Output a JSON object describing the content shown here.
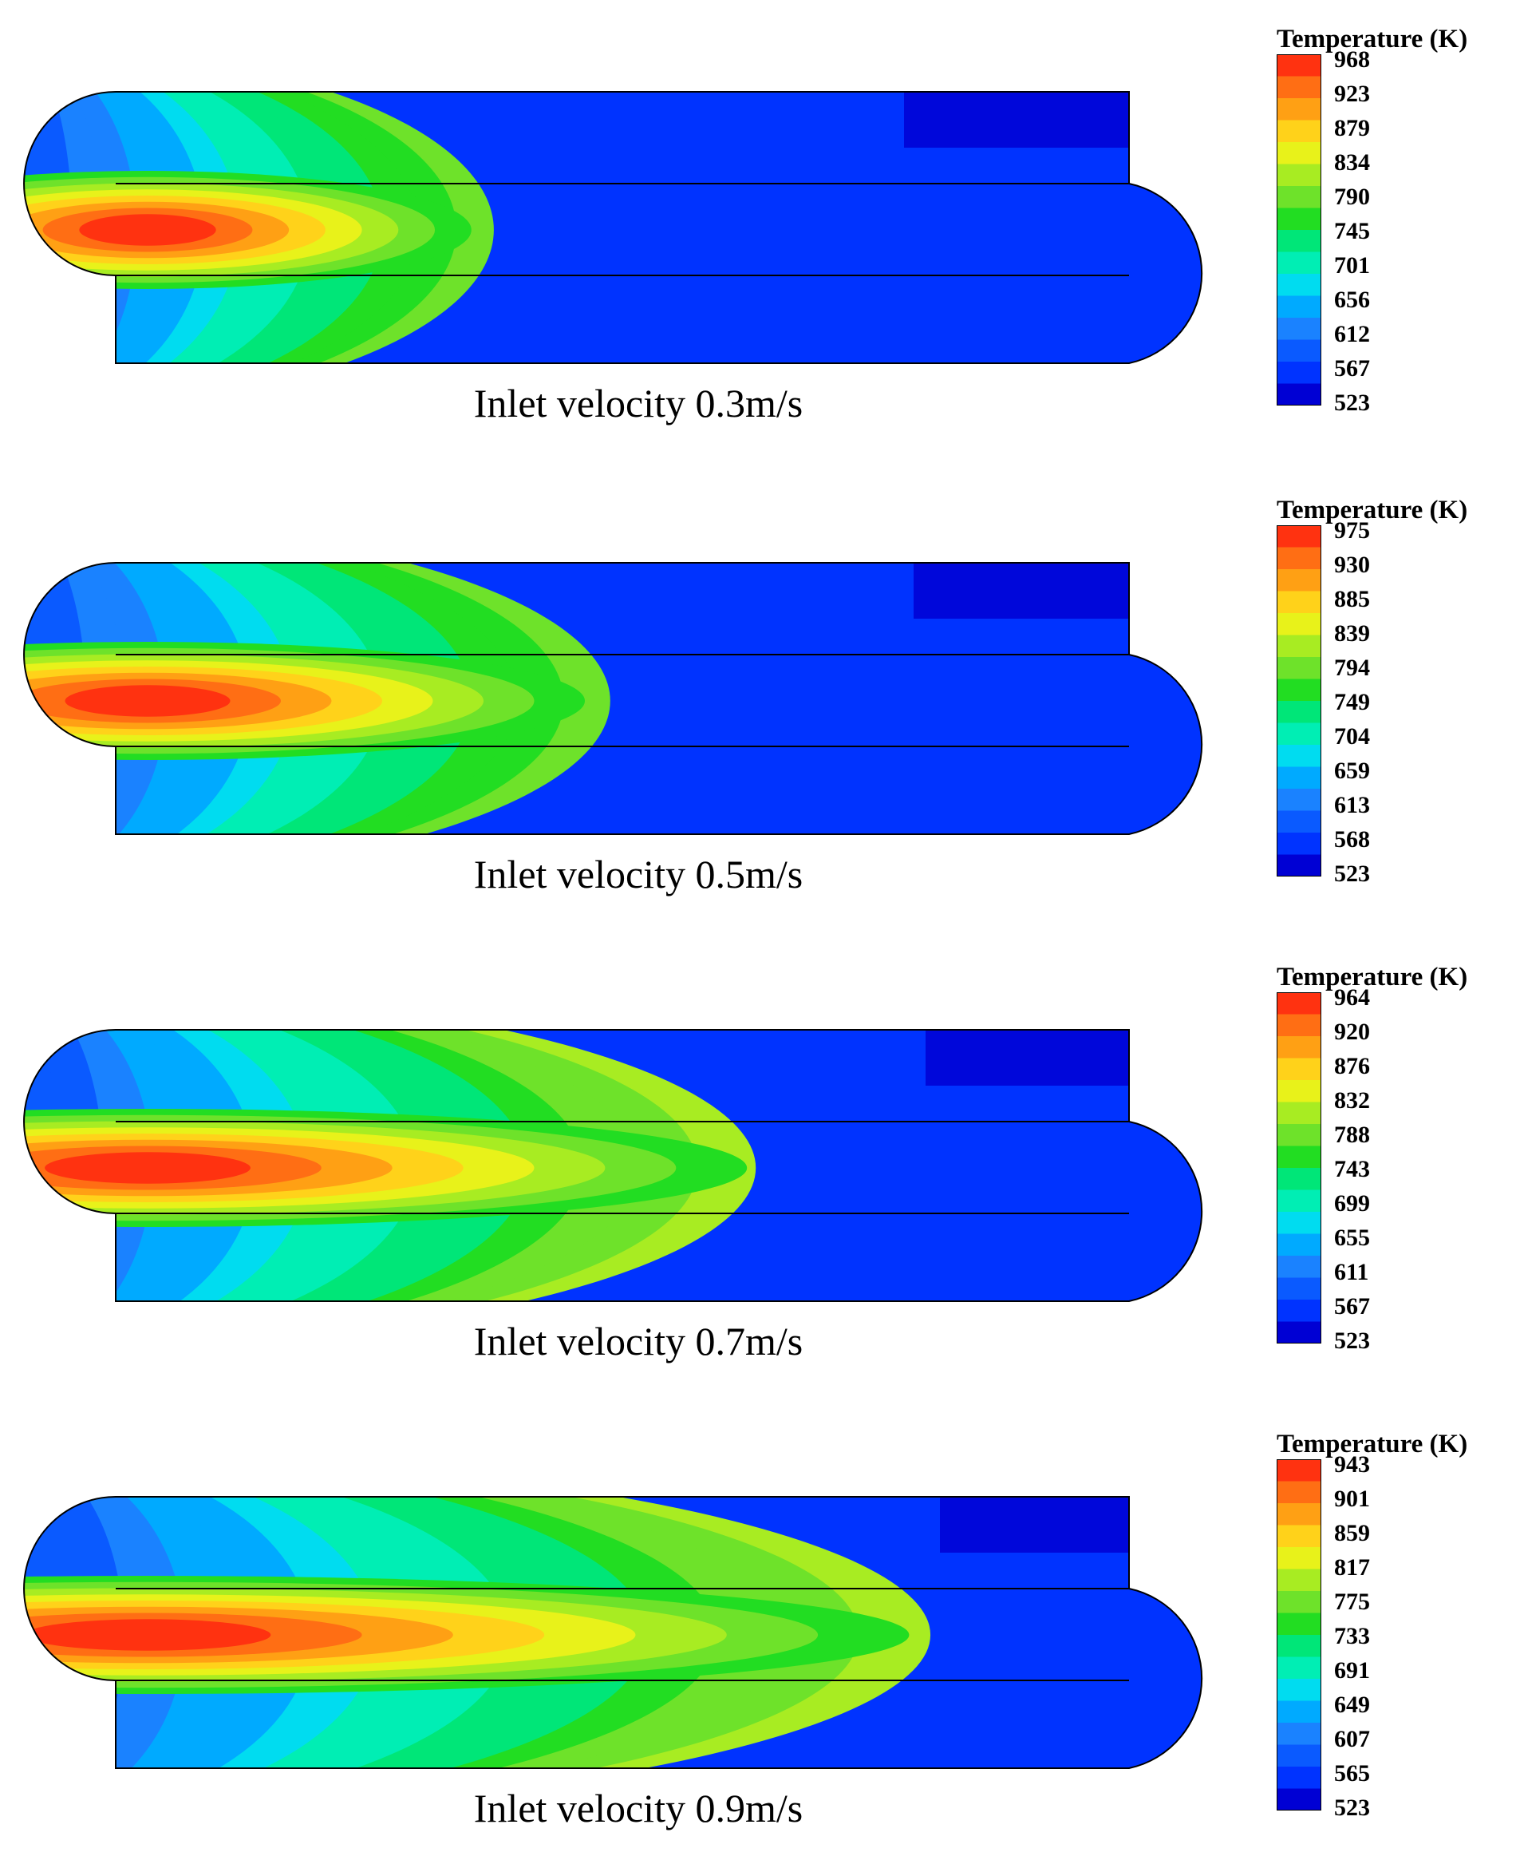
{
  "figure": {
    "type": "temperature-contour-comparison"
  },
  "colormap": [
    "#0000d4",
    "#0033ff",
    "#0a5aff",
    "#1a82ff",
    "#00aaff",
    "#00dcf0",
    "#00eeb4",
    "#00e678",
    "#22dd22",
    "#6ee22a",
    "#a8ec22",
    "#e8f21a",
    "#ffd21a",
    "#ffa014",
    "#ff6e14",
    "#ff3210"
  ],
  "panels": [
    {
      "caption": "Inlet velocity 0.3m/s",
      "legend": {
        "title": "Temperature (K)",
        "ticks": [
          "968",
          "923",
          "879",
          "834",
          "790",
          "745",
          "701",
          "656",
          "612",
          "567",
          "523"
        ]
      },
      "field": {
        "decay": 0.12,
        "core_level": 15,
        "core_length": 0.18,
        "outer_level": 9
      }
    },
    {
      "caption": "Inlet velocity 0.5m/s",
      "legend": {
        "title": "Temperature (K)",
        "ticks": [
          "975",
          "930",
          "885",
          "839",
          "794",
          "749",
          "704",
          "659",
          "613",
          "568",
          "523"
        ]
      },
      "field": {
        "decay": 0.2,
        "core_level": 15,
        "core_length": 0.25,
        "outer_level": 9
      }
    },
    {
      "caption": "Inlet velocity 0.7m/s",
      "legend": {
        "title": "Temperature (K)",
        "ticks": [
          "964",
          "920",
          "876",
          "832",
          "788",
          "743",
          "699",
          "655",
          "611",
          "567",
          "523"
        ]
      },
      "field": {
        "decay": 0.3,
        "core_level": 15,
        "core_length": 0.35,
        "outer_level": 10
      }
    },
    {
      "caption": "Inlet velocity 0.9m/s",
      "legend": {
        "title": "Temperature (K)",
        "ticks": [
          "943",
          "901",
          "859",
          "817",
          "775",
          "733",
          "691",
          "649",
          "607",
          "565",
          "523"
        ]
      },
      "field": {
        "decay": 0.42,
        "core_level": 15,
        "core_length": 0.45,
        "outer_level": 10
      }
    }
  ]
}
